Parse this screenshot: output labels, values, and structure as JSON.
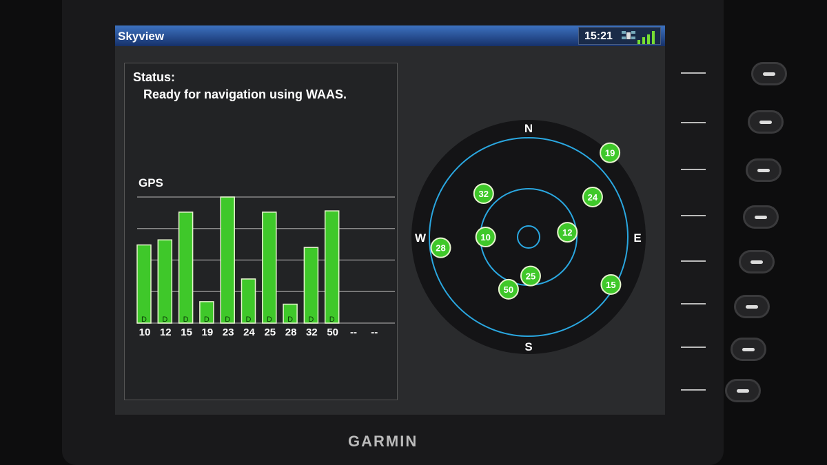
{
  "app": {
    "title": "Skyview",
    "time": "15:21",
    "icons": [
      "satellite-icon",
      "signal-strength-icon"
    ]
  },
  "status": {
    "label": "Status:",
    "text": "Ready for navigation using WAAS."
  },
  "device": {
    "brand": "GARMIN"
  },
  "colors": {
    "bar": "#3fc82a",
    "ring": "#2aa7e0",
    "titlebar": "#2a56a0"
  },
  "chart_data": {
    "type": "bar",
    "title": "GPS",
    "categories": [
      "10",
      "12",
      "15",
      "19",
      "23",
      "24",
      "25",
      "28",
      "32",
      "50",
      "--",
      "--"
    ],
    "values": [
      0.62,
      0.66,
      0.88,
      0.17,
      1.0,
      0.35,
      0.88,
      0.15,
      0.6,
      0.89,
      null,
      null
    ],
    "bar_labels": [
      "D",
      "D",
      "D",
      "D",
      "D",
      "D",
      "D",
      "D",
      "D",
      "D",
      "",
      ""
    ],
    "ylim": [
      0,
      1
    ],
    "grid": true
  },
  "skyview": {
    "compass": {
      "n": "N",
      "e": "E",
      "s": "S",
      "w": "W"
    },
    "satellites": [
      {
        "id": "19",
        "azimuth": 44,
        "elevation": 0
      },
      {
        "id": "32",
        "azimuth": 314,
        "elevation": 42
      },
      {
        "id": "24",
        "azimuth": 58,
        "elevation": 32
      },
      {
        "id": "10",
        "azimuth": 270,
        "elevation": 57
      },
      {
        "id": "12",
        "azimuth": 83,
        "elevation": 60
      },
      {
        "id": "28",
        "azimuth": 263,
        "elevation": 22
      },
      {
        "id": "25",
        "azimuth": 177,
        "elevation": 60
      },
      {
        "id": "50",
        "azimuth": 201,
        "elevation": 47
      },
      {
        "id": "15",
        "azimuth": 120,
        "elevation": 17
      }
    ]
  }
}
